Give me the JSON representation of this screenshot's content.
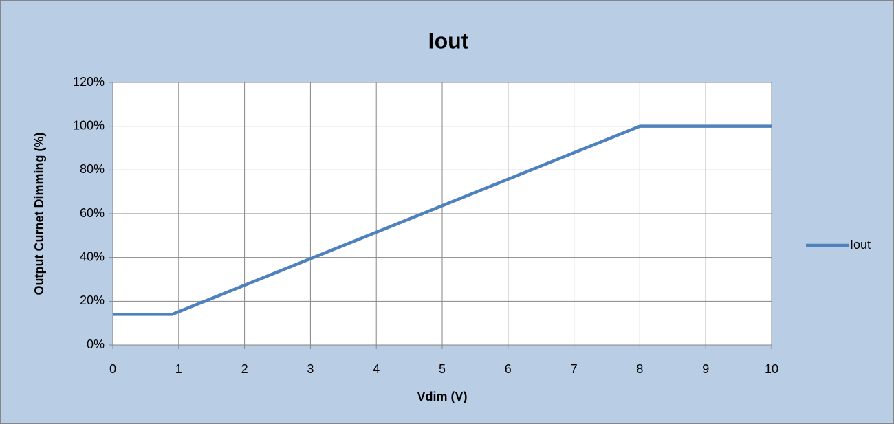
{
  "chart_data": {
    "type": "line",
    "title": "Iout",
    "xlabel": "Vdim (V)",
    "ylabel": "Output Curnet Dimming (%)",
    "x": [
      0,
      0.9,
      8,
      10
    ],
    "series": [
      {
        "name": "Iout",
        "color": "#4f81bd",
        "values": [
          14,
          14,
          100,
          100
        ]
      }
    ],
    "xlim": [
      0,
      10
    ],
    "xticks": [
      0,
      1,
      2,
      3,
      4,
      5,
      6,
      7,
      8,
      9,
      10
    ],
    "ylim": [
      0,
      120
    ],
    "yticks": [
      {
        "value": 0,
        "label": "0%"
      },
      {
        "value": 20,
        "label": "20%"
      },
      {
        "value": 40,
        "label": "40%"
      },
      {
        "value": 60,
        "label": "60%"
      },
      {
        "value": 80,
        "label": "80%"
      },
      {
        "value": 100,
        "label": "100%"
      },
      {
        "value": 120,
        "label": "120%"
      }
    ],
    "grid": true,
    "legend": "right"
  }
}
